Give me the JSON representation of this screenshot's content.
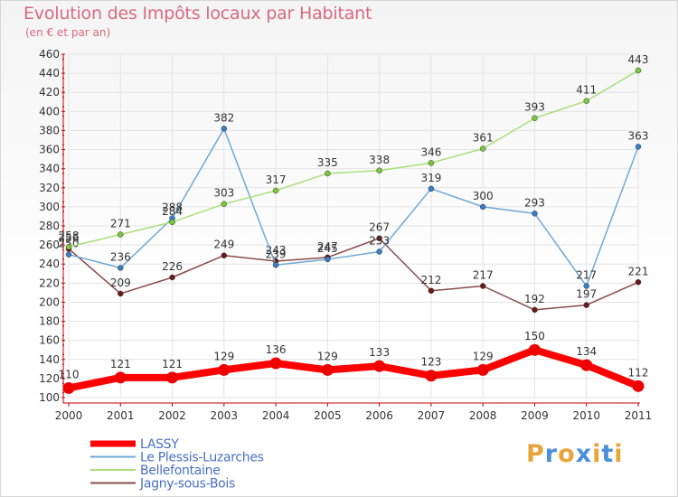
{
  "header": {
    "title": "Evolution des Impôts locaux par Habitant",
    "subtitle": "(en € et par an)"
  },
  "logo": {
    "text": "Proxiti",
    "letter_colors": [
      "#e8a63a",
      "#4a8fd8",
      "#e8a63a",
      "#4a8fd8",
      "#e8a63a",
      "#4a8fd8",
      "#e8a63a"
    ]
  },
  "colors": {
    "axis": "#c00000",
    "grid": "#e4e4e4",
    "tick_text": "#333333",
    "label_text": "#333333"
  },
  "chart_data": {
    "type": "line",
    "title": "Evolution des Impôts locaux par Habitant",
    "subtitle": "(en € et par an)",
    "xlabel": "",
    "ylabel": "",
    "ylim": [
      100,
      460
    ],
    "y_ticks": [
      100,
      120,
      140,
      160,
      180,
      200,
      220,
      240,
      260,
      280,
      300,
      320,
      340,
      360,
      380,
      400,
      420,
      440,
      460
    ],
    "grid": true,
    "legend_position": "bottom-left",
    "x": [
      "2000",
      "2001",
      "2002",
      "2003",
      "2004",
      "2005",
      "2006",
      "2007",
      "2008",
      "2009",
      "2010",
      "2011"
    ],
    "series": [
      {
        "name": "LASSY",
        "color": "#ff0000",
        "marker_color": "#ee0000",
        "emphasis": true,
        "values": [
          110,
          121,
          121,
          129,
          136,
          129,
          133,
          123,
          129,
          150,
          134,
          112
        ]
      },
      {
        "name": "Le Plessis-Luzarches",
        "color": "#6fa8d8",
        "marker_color": "#3a7fc4",
        "emphasis": false,
        "values": [
          250,
          236,
          288,
          382,
          239,
          245,
          253,
          319,
          300,
          293,
          217,
          363
        ]
      },
      {
        "name": "Bellefontaine",
        "color": "#a8e07a",
        "marker_color": "#7cc63e",
        "emphasis": false,
        "values": [
          258,
          271,
          284,
          303,
          317,
          335,
          338,
          346,
          361,
          393,
          411,
          443
        ]
      },
      {
        "name": "Jagny-sous-Bois",
        "color": "#8a4a4a",
        "marker_color": "#6b1a1a",
        "emphasis": false,
        "values": [
          256,
          209,
          226,
          249,
          243,
          247,
          267,
          212,
          217,
          192,
          197,
          221
        ]
      }
    ]
  }
}
